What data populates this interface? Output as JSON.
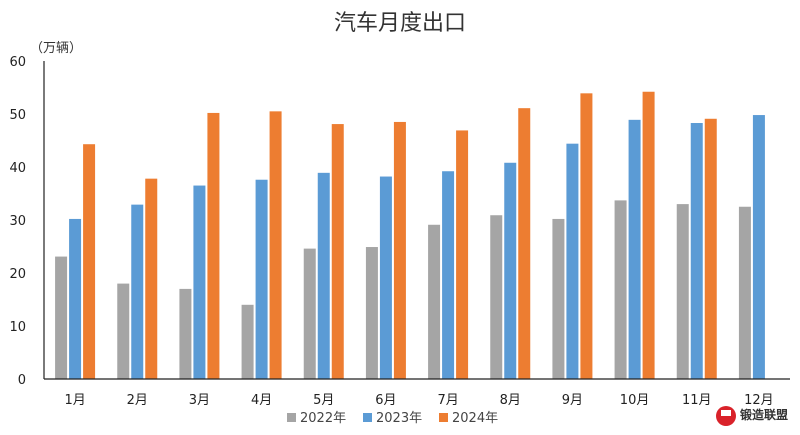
{
  "chart_data": {
    "type": "bar",
    "title": "汽车月度出口",
    "unit_label": "（万辆）",
    "categories": [
      "1月",
      "2月",
      "3月",
      "4月",
      "5月",
      "6月",
      "7月",
      "8月",
      "9月",
      "10月",
      "11月",
      "12月"
    ],
    "series": [
      {
        "name": "2022年",
        "color": "#a5a5a5",
        "values": [
          23.1,
          18.0,
          17.0,
          14.0,
          24.6,
          24.9,
          29.1,
          30.9,
          30.2,
          33.7,
          33.0,
          32.5
        ]
      },
      {
        "name": "2023年",
        "color": "#5b9bd5",
        "values": [
          30.2,
          32.9,
          36.5,
          37.6,
          38.9,
          38.2,
          39.2,
          40.8,
          44.4,
          48.9,
          48.3,
          49.8
        ]
      },
      {
        "name": "2024年",
        "color": "#ed7d31",
        "values": [
          44.3,
          37.8,
          50.2,
          50.5,
          48.1,
          48.5,
          46.9,
          51.1,
          53.9,
          54.2,
          49.1,
          null
        ]
      }
    ],
    "ylim": [
      0,
      60
    ],
    "yticks": [
      0,
      10,
      20,
      30,
      40,
      50,
      60
    ],
    "grid": false,
    "legend_position": "bottom"
  },
  "watermark": {
    "text": "锻造联盟"
  }
}
